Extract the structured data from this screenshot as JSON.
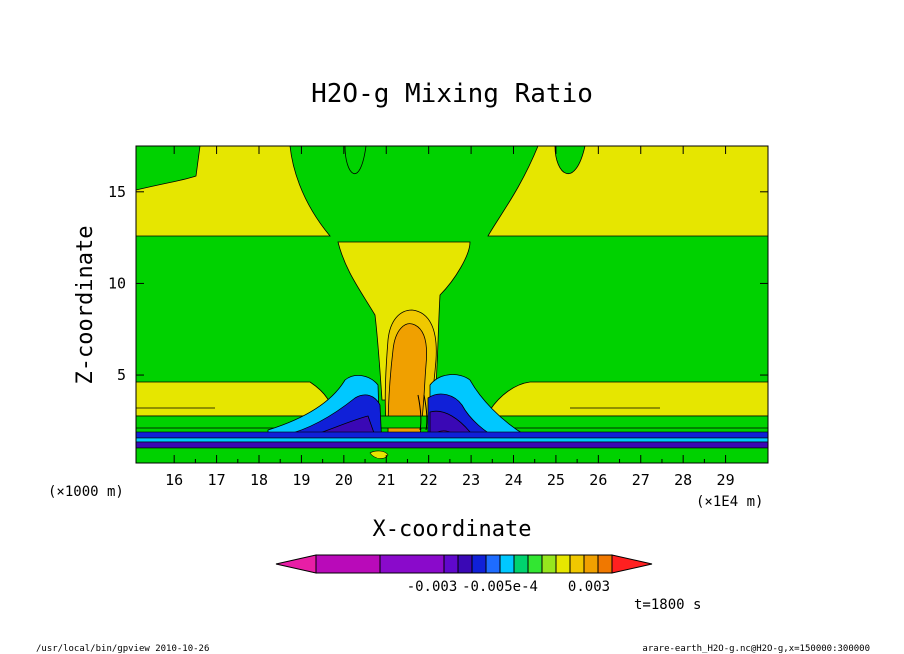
{
  "chart_data": {
    "type": "heatmap",
    "title": "H2O-g Mixing Ratio",
    "xlabel": "X-coordinate",
    "ylabel": "Z-coordinate",
    "x_unit_label": "(×1E4 m)",
    "y_unit_label": "(×1000 m)",
    "xlim": [
      15.1,
      30.0
    ],
    "ylim": [
      0.2,
      17.5
    ],
    "x_ticks": [
      16,
      17,
      18,
      19,
      20,
      21,
      22,
      23,
      24,
      25,
      26,
      27,
      28,
      29
    ],
    "y_ticks": [
      5,
      10,
      15
    ],
    "x_tick_labels": [
      "16",
      "17",
      "18",
      "19",
      "20",
      "21",
      "22",
      "23",
      "24",
      "25",
      "26",
      "27",
      "28",
      "29"
    ],
    "y_tick_labels": [
      "5",
      "10",
      "15"
    ],
    "grid": false,
    "colorbar": {
      "orientation": "horizontal",
      "colors": [
        "#e81ea6",
        "#b90ab9",
        "#8a0acb",
        "#6008cc",
        "#3a08b5",
        "#1020d8",
        "#1e6cff",
        "#00c8ff",
        "#00d26e",
        "#32e632",
        "#96e61e",
        "#e6e600",
        "#f0c800",
        "#f0a000",
        "#f07800",
        "#ff2020"
      ],
      "labels": [
        "-0.003",
        "-0.005e-4",
        "0.003"
      ]
    },
    "time_label": "t=1800 s"
  },
  "footer": {
    "left": "/usr/local/bin/gpview  2010-10-26",
    "right": "arare-earth_H2O-g.nc@H2O-g,x=150000:300000"
  }
}
